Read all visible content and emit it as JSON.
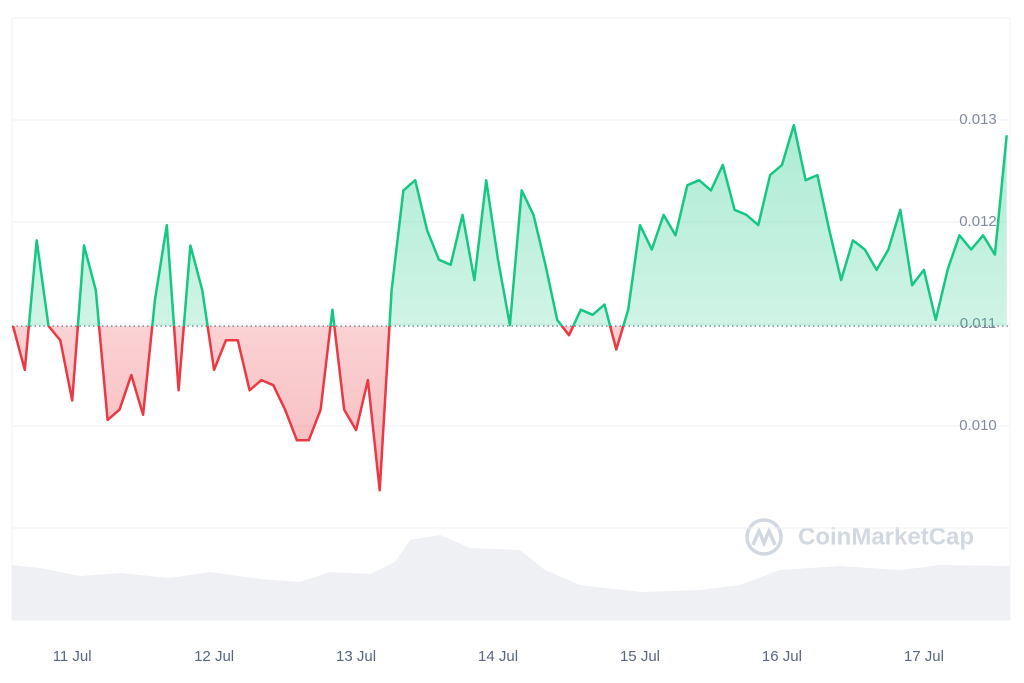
{
  "chart_data": {
    "type": "line",
    "categories": [
      null,
      null,
      null,
      null,
      null,
      "11 Jul",
      null,
      null,
      null,
      null,
      null,
      null,
      null,
      null,
      null,
      null,
      null,
      "12 Jul",
      null,
      null,
      null,
      null,
      null,
      null,
      null,
      null,
      null,
      null,
      null,
      "13 Jul",
      null,
      null,
      null,
      null,
      null,
      null,
      null,
      null,
      null,
      null,
      null,
      "14 Jul",
      null,
      null,
      null,
      null,
      null,
      null,
      null,
      null,
      null,
      null,
      null,
      "15 Jul",
      null,
      null,
      null,
      null,
      null,
      null,
      null,
      null,
      null,
      null,
      null,
      "16 Jul",
      null,
      null,
      null,
      null,
      null,
      null,
      null,
      null,
      null,
      null,
      null,
      "17 Jul",
      null,
      null,
      null,
      null,
      null,
      null,
      null
    ],
    "values": [
      0.01098,
      0.01055,
      0.01182,
      0.01098,
      0.01084,
      0.01025,
      0.01177,
      0.01133,
      0.01006,
      0.01016,
      0.0105,
      0.01011,
      0.01124,
      0.01197,
      0.01035,
      0.01177,
      0.01133,
      0.01055,
      0.01084,
      0.01084,
      0.01035,
      0.01045,
      0.0104,
      0.01016,
      0.00986,
      0.00986,
      0.01016,
      0.01114,
      0.01016,
      0.00996,
      0.01045,
      0.00937,
      0.01133,
      0.01231,
      0.01241,
      0.01192,
      0.01163,
      0.01158,
      0.01207,
      0.01143,
      0.01241,
      0.01163,
      0.01099,
      0.01231,
      0.01207,
      0.01158,
      0.01104,
      0.01089,
      0.01114,
      0.01109,
      0.01119,
      0.01075,
      0.01114,
      0.01197,
      0.01173,
      0.01207,
      0.01187,
      0.01236,
      0.01241,
      0.01231,
      0.01256,
      0.01212,
      0.01207,
      0.01197,
      0.01246,
      0.01256,
      0.01295,
      0.01241,
      0.01246,
      0.01192,
      0.01143,
      0.01182,
      0.01173,
      0.01153,
      0.01173,
      0.01212,
      0.01138,
      0.01153,
      0.01104,
      0.01153,
      0.01187,
      0.01173,
      0.01187,
      0.01168,
      0.01285
    ],
    "baseline": 0.01098,
    "up_color": "#16c784",
    "down_color": "#ea3943",
    "ylim": [
      0.009,
      0.014
    ],
    "yticks": [
      {
        "value": 0.01,
        "label": "0.010"
      },
      0.011,
      0.012,
      0.013
    ],
    "grid": true,
    "watermark": "CoinMarketCap"
  }
}
